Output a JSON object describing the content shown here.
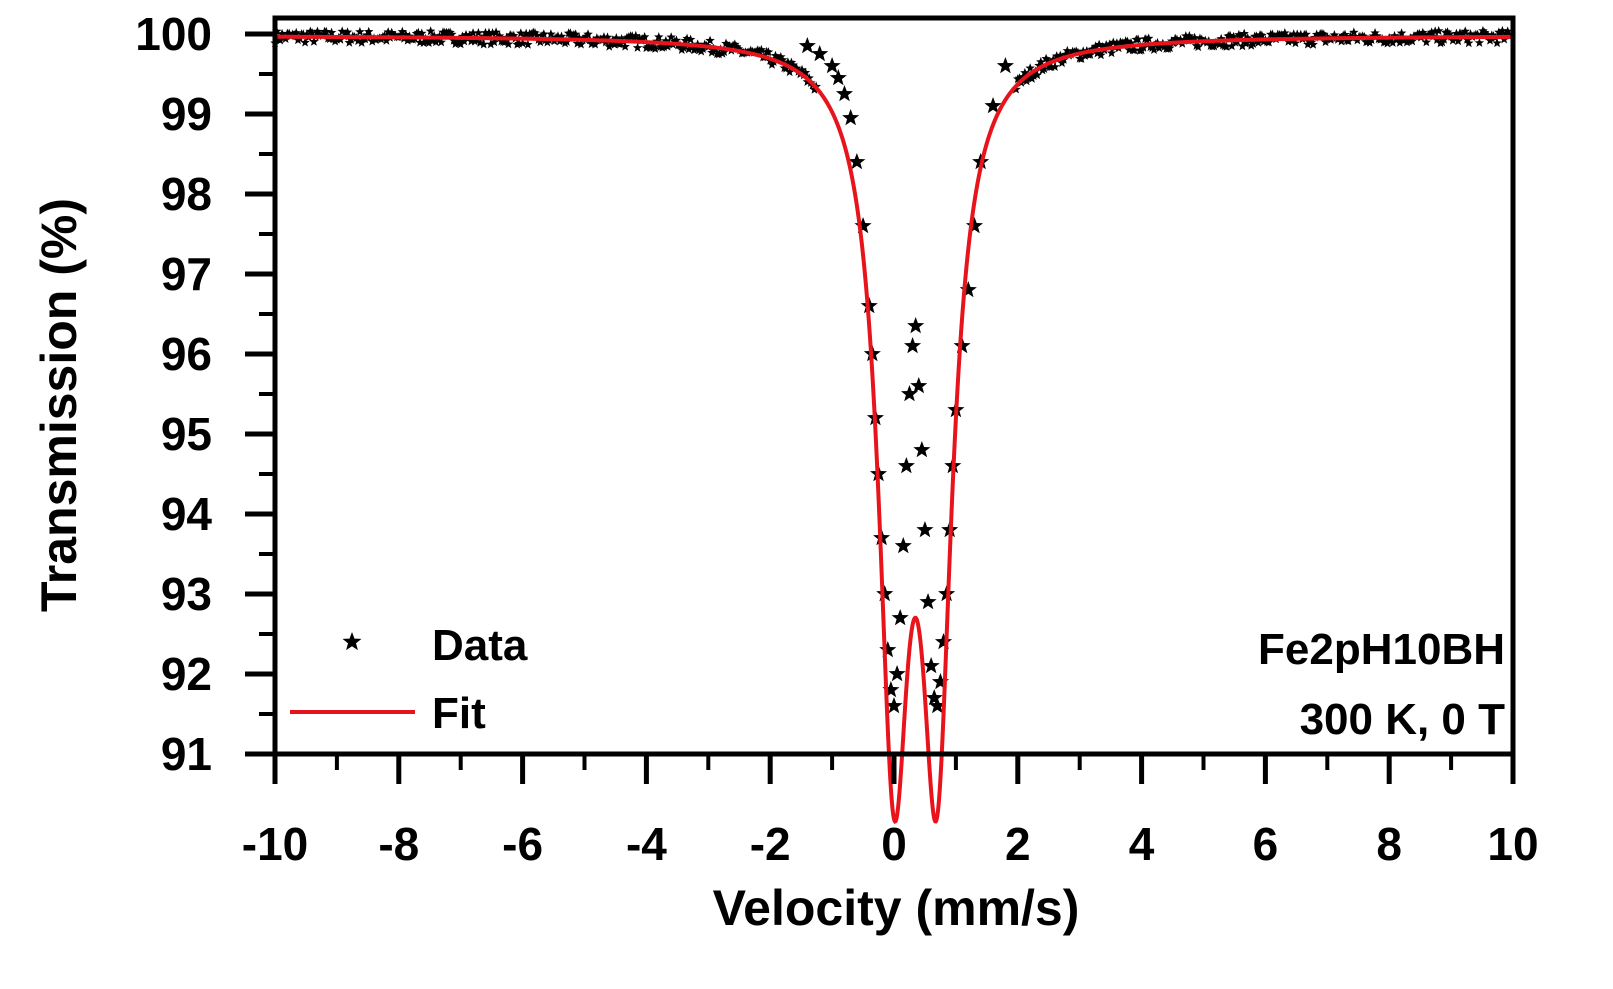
{
  "chart_data": {
    "type": "scatter",
    "title": "",
    "xlabel": "Velocity (mm/s)",
    "ylabel": "Transmission (%)",
    "xlim": [
      -10,
      10
    ],
    "ylim": [
      91,
      100.2
    ],
    "x_ticks": [
      -10,
      -8,
      -6,
      -4,
      -2,
      0,
      2,
      4,
      6,
      8,
      10
    ],
    "x_tick_labels": [
      "-10",
      "-8",
      "-6",
      "-4",
      "-2",
      "0",
      "2",
      "4",
      "6",
      "8",
      "10"
    ],
    "y_ticks": [
      91,
      92,
      93,
      94,
      95,
      96,
      97,
      98,
      99,
      100
    ],
    "y_tick_labels": [
      "91",
      "92",
      "93",
      "94",
      "95",
      "96",
      "97",
      "98",
      "99",
      "100"
    ],
    "grid": false,
    "legend": {
      "position": "bottom-left",
      "entries": [
        {
          "label": "Data",
          "marker": "star",
          "color": "#000000"
        },
        {
          "label": "Fit",
          "marker": "line",
          "color": "#e8141b"
        }
      ]
    },
    "annotations": [
      "Fe2pH10BH",
      "300 K, 0 T"
    ],
    "series": [
      {
        "name": "Data",
        "kind": "scatter",
        "marker": "star",
        "color": "#000000",
        "x": [
          -1.4,
          -1.2,
          -1.0,
          -0.9,
          -0.8,
          -0.7,
          -0.6,
          -0.5,
          -0.4,
          -0.35,
          -0.3,
          -0.25,
          -0.2,
          -0.15,
          -0.1,
          -0.05,
          0.0,
          0.05,
          0.1,
          0.15,
          0.2,
          0.25,
          0.3,
          0.35,
          0.4,
          0.45,
          0.5,
          0.55,
          0.6,
          0.65,
          0.7,
          0.75,
          0.8,
          0.85,
          0.9,
          0.95,
          1.0,
          1.1,
          1.2,
          1.3,
          1.4,
          1.6,
          1.8
        ],
        "y": [
          99.85,
          99.75,
          99.6,
          99.45,
          99.25,
          98.95,
          98.4,
          97.6,
          96.6,
          96.0,
          95.2,
          94.5,
          93.7,
          93.0,
          92.3,
          91.8,
          91.6,
          92.0,
          92.7,
          93.6,
          94.6,
          95.5,
          96.1,
          96.35,
          95.6,
          94.8,
          93.8,
          92.9,
          92.1,
          91.7,
          91.6,
          91.9,
          92.4,
          93.0,
          93.8,
          94.6,
          95.3,
          96.1,
          96.8,
          97.6,
          98.4,
          99.1,
          99.6
        ]
      },
      {
        "name": "Fit",
        "kind": "line",
        "color": "#e8141b",
        "model": "doublet",
        "baseline": 99.98,
        "centers": [
          0.0,
          0.69
        ],
        "depth": 8.45,
        "hwhm": 0.3
      }
    ]
  }
}
